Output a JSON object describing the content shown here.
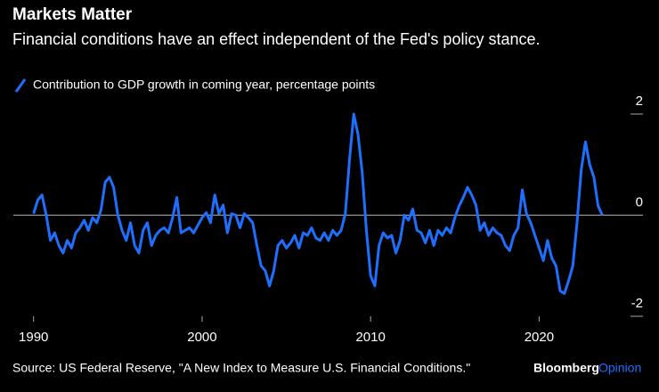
{
  "chart_data": {
    "type": "line",
    "title": "Markets Matter",
    "subtitle": "Financial conditions have an effect independent of the Fed's policy stance.",
    "source": "Source: US Federal Reserve, \"A New Index to Measure U.S. Financial Conditions.\"",
    "brand": "Bloomberg",
    "brand_suffix": "Opinion",
    "x": [
      1990,
      1990.25,
      1990.5,
      1990.75,
      1991,
      1991.25,
      1991.5,
      1991.75,
      1992,
      1992.25,
      1992.5,
      1992.75,
      1993,
      1993.25,
      1993.5,
      1993.75,
      1994,
      1994.25,
      1994.5,
      1994.75,
      1995,
      1995.25,
      1995.5,
      1995.75,
      1996,
      1996.25,
      1996.5,
      1996.75,
      1997,
      1997.25,
      1997.5,
      1997.75,
      1998,
      1998.25,
      1998.5,
      1998.75,
      1999,
      1999.25,
      1999.5,
      1999.75,
      2000,
      2000.25,
      2000.5,
      2000.75,
      2001,
      2001.25,
      2001.5,
      2001.75,
      2002,
      2002.25,
      2002.5,
      2002.75,
      2003,
      2003.25,
      2003.5,
      2003.75,
      2004,
      2004.25,
      2004.5,
      2004.75,
      2005,
      2005.25,
      2005.5,
      2005.75,
      2006,
      2006.25,
      2006.5,
      2006.75,
      2007,
      2007.25,
      2007.5,
      2007.75,
      2008,
      2008.25,
      2008.5,
      2008.75,
      2009,
      2009.25,
      2009.5,
      2009.75,
      2010,
      2010.25,
      2010.5,
      2010.75,
      2011,
      2011.25,
      2011.5,
      2011.75,
      2012,
      2012.25,
      2012.5,
      2012.75,
      2013,
      2013.25,
      2013.5,
      2013.75,
      2014,
      2014.25,
      2014.5,
      2014.75,
      2015,
      2015.25,
      2015.5,
      2015.75,
      2016,
      2016.25,
      2016.5,
      2016.75,
      2017,
      2017.25,
      2017.5,
      2017.75,
      2018,
      2018.25,
      2018.5,
      2018.75,
      2019,
      2019.25,
      2019.5,
      2019.75,
      2020,
      2020.25,
      2020.5,
      2020.75,
      2021,
      2021.25,
      2021.5,
      2021.75,
      2022,
      2022.25,
      2022.5,
      2022.75,
      2023,
      2023.25,
      2023.5,
      2023.75
    ],
    "series": [
      {
        "name": "Contribution to GDP growth in coming year, percentage points",
        "color": "#1f6fff",
        "values": [
          0.03,
          0.3,
          0.4,
          0,
          -0.5,
          -0.35,
          -0.6,
          -0.75,
          -0.5,
          -0.65,
          -0.35,
          -0.25,
          -0.1,
          -0.3,
          -0.05,
          -0.15,
          0.1,
          0.65,
          0.75,
          0.55,
          0,
          -0.3,
          -0.5,
          -0.15,
          -0.6,
          -0.75,
          -0.3,
          -0.15,
          -0.6,
          -0.4,
          -0.3,
          -0.25,
          -0.35,
          -0.05,
          0.35,
          -0.35,
          -0.3,
          -0.25,
          -0.35,
          -0.2,
          -0.05,
          0.05,
          -0.15,
          0.4,
          0.03,
          0.2,
          -0.35,
          0.03,
          0,
          -0.25,
          0.03,
          -0.05,
          -0.15,
          -0.6,
          -1.0,
          -1.1,
          -1.4,
          -1.1,
          -0.6,
          -0.5,
          -0.65,
          -0.55,
          -0.4,
          -0.65,
          -0.35,
          -0.4,
          -0.25,
          -0.45,
          -0.5,
          -0.35,
          -0.5,
          -0.3,
          -0.4,
          -0.3,
          0.03,
          1.1,
          2.0,
          1.6,
          0.85,
          -0.3,
          -1.2,
          -1.4,
          -0.6,
          -0.35,
          -0.45,
          -0.4,
          -0.75,
          -0.5,
          0,
          -0.1,
          0.12,
          -0.3,
          -0.35,
          -0.55,
          -0.3,
          -0.6,
          -0.3,
          -0.4,
          -0.25,
          -0.35,
          -0.05,
          0.18,
          0.35,
          0.55,
          0.4,
          0.2,
          -0.3,
          -0.15,
          -0.4,
          -0.25,
          -0.35,
          -0.4,
          -0.6,
          -0.7,
          -0.4,
          -0.25,
          0.5,
          0.03,
          -0.15,
          -0.4,
          -0.65,
          -0.9,
          -0.5,
          -0.85,
          -1.0,
          -1.5,
          -1.55,
          -1.3,
          -1.0,
          -0.15,
          0.9,
          1.45,
          1.0,
          0.75,
          0.18,
          0
        ]
      }
    ],
    "xlim": [
      1988.8,
      2025
    ],
    "xticks": [
      1990,
      2000,
      2010,
      2020
    ],
    "ylim": [
      -2,
      2
    ],
    "yticks": [
      -2,
      0,
      2
    ]
  }
}
